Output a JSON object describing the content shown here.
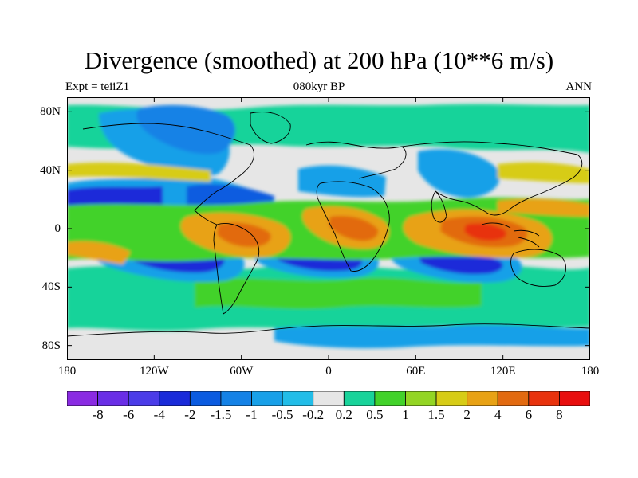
{
  "header": {
    "title": "Divergence (smoothed) at 200 hPa (10**6 m/s)",
    "left_label": "Expt = teiiZ1",
    "center_label": "080kyr BP",
    "right_label": "ANN"
  },
  "map": {
    "projection": "cylindrical equidistant",
    "lon_range": [
      -180,
      180
    ],
    "lat_range": [
      -90,
      90
    ],
    "lat_ticks": [
      {
        "value": 80,
        "label": "80N"
      },
      {
        "value": 40,
        "label": "40N"
      },
      {
        "value": 0,
        "label": "0"
      },
      {
        "value": -40,
        "label": "40S"
      },
      {
        "value": -80,
        "label": "80S"
      }
    ],
    "lon_ticks": [
      {
        "value": -180,
        "label": "180"
      },
      {
        "value": -120,
        "label": "120W"
      },
      {
        "value": -60,
        "label": "60W"
      },
      {
        "value": 0,
        "label": "0"
      },
      {
        "value": 60,
        "label": "60E"
      },
      {
        "value": 120,
        "label": "120E"
      },
      {
        "value": 180,
        "label": "180"
      }
    ],
    "coastline_color": "#000000"
  },
  "colorbar": {
    "colors": [
      "#8a2be2",
      "#6a2ee6",
      "#4b3ce8",
      "#1a2bd9",
      "#0b5be0",
      "#1582e6",
      "#18a0e8",
      "#22bde8",
      "#e6e6e6",
      "#18d39a",
      "#42d22a",
      "#93d524",
      "#d7cc16",
      "#e8a215",
      "#e26a10",
      "#e8320d",
      "#e80e0e"
    ],
    "labels": [
      "-8",
      "-6",
      "-4",
      "-2",
      "-1.5",
      "-1",
      "-0.5",
      "-0.2",
      "0.2",
      "0.5",
      "1",
      "1.5",
      "2",
      "4",
      "6",
      "8"
    ]
  }
}
